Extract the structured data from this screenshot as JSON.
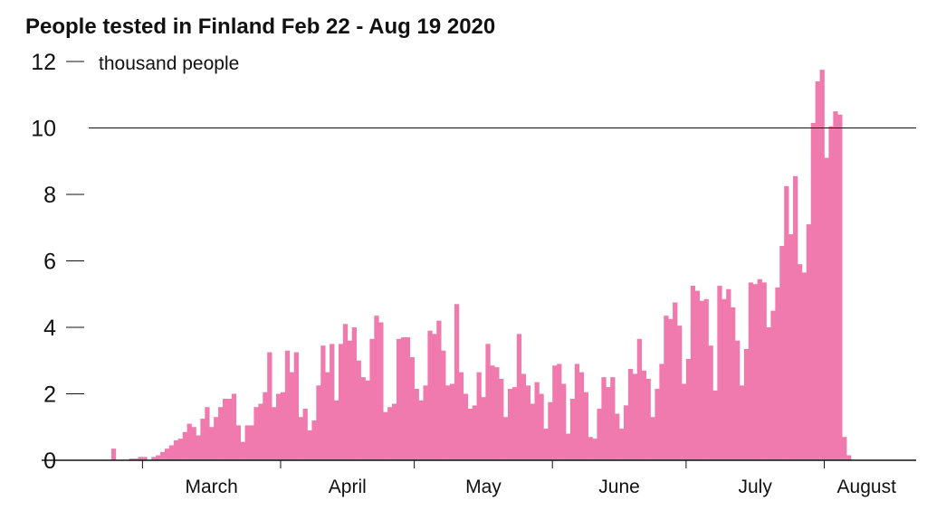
{
  "chart_data": {
    "type": "bar",
    "title": "People tested in Finland Feb 22 - Aug 19 2020",
    "ylabel": "thousand people",
    "ylim": [
      0,
      12
    ],
    "yticks": [
      0,
      2,
      4,
      6,
      8,
      10,
      12
    ],
    "grid_line_at": 10,
    "x_start": "2020-02-22",
    "x_end": "2020-08-19",
    "month_labels": [
      {
        "label": "March",
        "date": "2020-03-01"
      },
      {
        "label": "April",
        "date": "2020-04-01"
      },
      {
        "label": "May",
        "date": "2020-05-01"
      },
      {
        "label": "June",
        "date": "2020-06-01"
      },
      {
        "label": "July",
        "date": "2020-07-01"
      },
      {
        "label": "August",
        "date": "2020-08-01"
      }
    ],
    "series": [
      {
        "color": "#f07aae",
        "values": [
          0,
          0.35,
          0,
          0,
          0,
          0.05,
          0.05,
          0.1,
          0.1,
          0,
          0.1,
          0.15,
          0.25,
          0.35,
          0.45,
          0.6,
          0.65,
          0.85,
          1.1,
          1.0,
          0.75,
          1.25,
          1.6,
          1.0,
          1.3,
          1.6,
          1.85,
          1.85,
          2.0,
          1.05,
          0.55,
          1.05,
          1.05,
          1.6,
          1.7,
          2.05,
          3.25,
          1.6,
          2.0,
          2.05,
          3.3,
          2.65,
          3.25,
          1.3,
          1.55,
          0.9,
          1.2,
          2.25,
          3.45,
          2.65,
          3.5,
          1.8,
          3.5,
          4.1,
          3.6,
          4.0,
          3.0,
          2.5,
          2.4,
          3.65,
          4.35,
          4.15,
          1.45,
          1.6,
          1.7,
          3.65,
          3.7,
          3.7,
          3.1,
          2.15,
          1.8,
          2.25,
          3.9,
          3.8,
          4.2,
          3.3,
          2.25,
          2.3,
          4.7,
          2.65,
          2.0,
          1.55,
          1.65,
          2.65,
          1.9,
          3.5,
          2.85,
          2.8,
          2.45,
          1.3,
          2.15,
          2.2,
          3.8,
          2.6,
          2.25,
          1.7,
          2.35,
          2.0,
          0.95,
          1.75,
          2.85,
          2.9,
          2.3,
          0.8,
          1.85,
          2.9,
          2.65,
          2.05,
          0.7,
          0.65,
          1.55,
          2.5,
          2.2,
          2.5,
          1.4,
          0.95,
          1.65,
          2.75,
          2.6,
          3.65,
          2.7,
          2.45,
          1.3,
          2.15,
          2.9,
          4.35,
          4.25,
          4.75,
          4.05,
          2.3,
          3.05,
          5.25,
          5.1,
          4.8,
          4.85,
          3.45,
          2.1,
          5.25,
          4.85,
          5.15,
          4.6,
          3.6,
          2.25,
          3.35,
          5.35,
          5.3,
          5.45,
          5.35,
          4.0,
          4.5,
          5.2,
          6.45,
          8.25,
          6.8,
          8.55,
          5.9,
          5.65,
          7.1,
          10.15,
          11.4,
          11.75,
          9.1,
          10.05,
          10.5,
          10.4,
          0.7,
          0.15
        ]
      }
    ]
  }
}
